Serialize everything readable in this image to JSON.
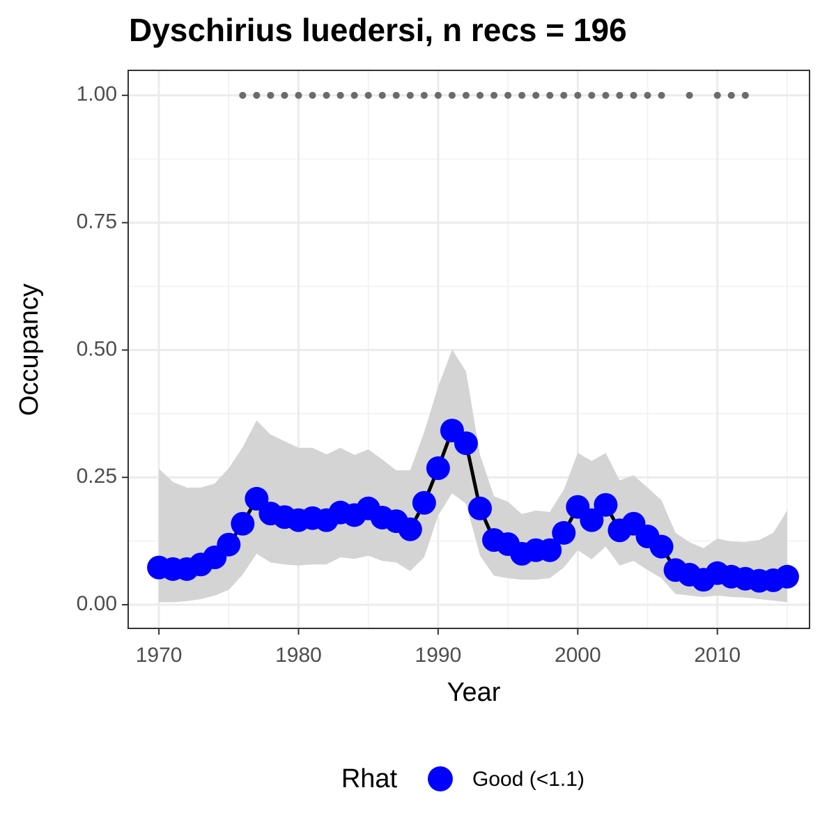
{
  "chart_data": {
    "type": "line",
    "title": "Dyschirius luedersi, n recs = 196",
    "x_label": "Year",
    "y_label": "Occupancy",
    "x": [
      1970,
      1971,
      1972,
      1973,
      1974,
      1975,
      1976,
      1977,
      1978,
      1979,
      1980,
      1981,
      1982,
      1983,
      1984,
      1985,
      1986,
      1987,
      1988,
      1989,
      1990,
      1991,
      1992,
      1993,
      1994,
      1995,
      1996,
      1997,
      1998,
      1999,
      2000,
      2001,
      2002,
      2003,
      2004,
      2005,
      2006,
      2007,
      2008,
      2009,
      2010,
      2011,
      2012,
      2013,
      2014,
      2015
    ],
    "series": [
      {
        "name": "Good (<1.1)",
        "color": "#0000ff",
        "values": [
          0.073,
          0.07,
          0.07,
          0.079,
          0.093,
          0.118,
          0.159,
          0.208,
          0.179,
          0.172,
          0.166,
          0.17,
          0.166,
          0.181,
          0.176,
          0.189,
          0.171,
          0.164,
          0.148,
          0.2,
          0.268,
          0.342,
          0.317,
          0.189,
          0.127,
          0.119,
          0.1,
          0.107,
          0.107,
          0.141,
          0.192,
          0.166,
          0.196,
          0.146,
          0.159,
          0.134,
          0.114,
          0.068,
          0.059,
          0.049,
          0.062,
          0.055,
          0.051,
          0.047,
          0.048,
          0.055
        ]
      }
    ],
    "line_color": "#000000",
    "ribbon": {
      "color": "#d4d4d4",
      "upper": [
        0.267,
        0.241,
        0.23,
        0.23,
        0.238,
        0.268,
        0.309,
        0.362,
        0.334,
        0.321,
        0.308,
        0.308,
        0.295,
        0.308,
        0.294,
        0.305,
        0.285,
        0.264,
        0.264,
        0.339,
        0.428,
        0.501,
        0.458,
        0.294,
        0.213,
        0.202,
        0.178,
        0.185,
        0.182,
        0.226,
        0.298,
        0.282,
        0.298,
        0.244,
        0.254,
        0.23,
        0.205,
        0.141,
        0.123,
        0.111,
        0.13,
        0.124,
        0.123,
        0.127,
        0.141,
        0.185
      ],
      "lower": [
        0.005,
        0.005,
        0.007,
        0.011,
        0.018,
        0.029,
        0.059,
        0.1,
        0.083,
        0.079,
        0.077,
        0.079,
        0.079,
        0.093,
        0.09,
        0.096,
        0.086,
        0.083,
        0.066,
        0.093,
        0.175,
        0.219,
        0.198,
        0.096,
        0.057,
        0.052,
        0.049,
        0.049,
        0.052,
        0.073,
        0.107,
        0.089,
        0.114,
        0.077,
        0.086,
        0.068,
        0.052,
        0.021,
        0.018,
        0.015,
        0.018,
        0.015,
        0.014,
        0.011,
        0.008,
        0.005
      ]
    },
    "records": {
      "color": "#6b6b6b",
      "x": [
        1976,
        1977,
        1978,
        1979,
        1980,
        1981,
        1982,
        1983,
        1984,
        1985,
        1986,
        1987,
        1988,
        1989,
        1990,
        1991,
        1992,
        1993,
        1994,
        1995,
        1996,
        1997,
        1998,
        1999,
        2000,
        2001,
        2002,
        2003,
        2004,
        2005,
        2006,
        2008,
        2010,
        2011,
        2012
      ],
      "values": [
        1,
        1,
        1,
        1,
        1,
        1,
        1,
        1,
        1,
        1,
        1,
        1,
        1,
        1,
        1,
        1,
        1,
        1,
        1,
        1,
        1,
        1,
        1,
        1,
        1,
        1,
        1,
        1,
        1,
        1,
        1,
        1,
        1,
        1,
        1
      ]
    },
    "legend_title": "Rhat",
    "legend_position": "bottom",
    "xlim": [
      1967.8,
      2016.6
    ],
    "ylim": [
      -0.0465,
      1.049
    ],
    "xticks": [
      1970,
      1980,
      1990,
      2000,
      2010
    ],
    "yticks": [
      {
        "value": 0,
        "label": "0.00"
      },
      {
        "value": 0.25,
        "label": "0.25"
      },
      {
        "value": 0.5,
        "label": "0.50"
      },
      {
        "value": 0.75,
        "label": "0.75"
      },
      {
        "value": 1,
        "label": "1.00"
      }
    ],
    "xminor": [
      1975,
      1985,
      1995,
      2005,
      2015
    ],
    "yminor": [
      0.125,
      0.375,
      0.625,
      0.875
    ],
    "grid": true
  }
}
